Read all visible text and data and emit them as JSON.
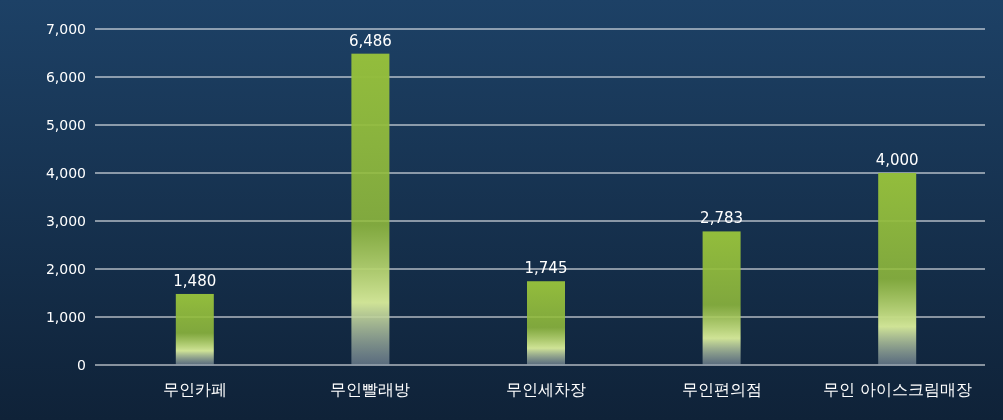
{
  "chart_data": {
    "type": "bar",
    "categories": [
      "무인카페",
      "무인빨래방",
      "무인세차장",
      "무인편의점",
      "무인 아이스크림매장"
    ],
    "values": [
      1480,
      6486,
      1745,
      2783,
      4000
    ],
    "color": "#93bd3c",
    "ylim": [
      0,
      7000
    ],
    "yticks": [
      {
        "value": 0,
        "label": "0"
      },
      {
        "value": 1000,
        "label": "1,000"
      },
      {
        "value": 2000,
        "label": "2,000"
      },
      {
        "value": 3000,
        "label": "3,000"
      },
      {
        "value": 4000,
        "label": "4,000"
      },
      {
        "value": 5000,
        "label": "5,000"
      },
      {
        "value": 6000,
        "label": "6,000"
      },
      {
        "value": 7000,
        "label": "7,000"
      }
    ],
    "grid": "y",
    "value_labels": [
      "1,480",
      "6,486",
      "1,745",
      "2,783",
      "4,000"
    ]
  }
}
